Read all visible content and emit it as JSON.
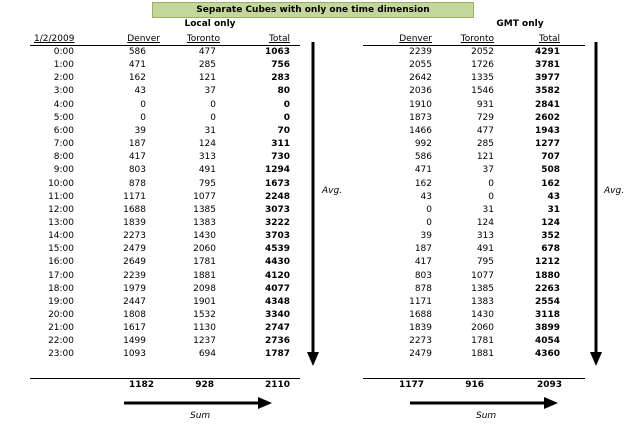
{
  "title": "Separate Cubes with only one time dimension",
  "date_label": "1/2/2009",
  "local": {
    "heading": "Local only",
    "cols": [
      "Denver",
      "Toronto",
      "Total"
    ],
    "rows": [
      [
        "0:00",
        "586",
        "477",
        "1063"
      ],
      [
        "1:00",
        "471",
        "285",
        "756"
      ],
      [
        "2:00",
        "162",
        "121",
        "283"
      ],
      [
        "3:00",
        "43",
        "37",
        "80"
      ],
      [
        "4:00",
        "0",
        "0",
        "0"
      ],
      [
        "5:00",
        "0",
        "0",
        "0"
      ],
      [
        "6:00",
        "39",
        "31",
        "70"
      ],
      [
        "7:00",
        "187",
        "124",
        "311"
      ],
      [
        "8:00",
        "417",
        "313",
        "730"
      ],
      [
        "9:00",
        "803",
        "491",
        "1294"
      ],
      [
        "10:00",
        "878",
        "795",
        "1673"
      ],
      [
        "11:00",
        "1171",
        "1077",
        "2248"
      ],
      [
        "12:00",
        "1688",
        "1385",
        "3073"
      ],
      [
        "13:00",
        "1839",
        "1383",
        "3222"
      ],
      [
        "14:00",
        "2273",
        "1430",
        "3703"
      ],
      [
        "15:00",
        "2479",
        "2060",
        "4539"
      ],
      [
        "16:00",
        "2649",
        "1781",
        "4430"
      ],
      [
        "17:00",
        "2239",
        "1881",
        "4120"
      ],
      [
        "18:00",
        "1979",
        "2098",
        "4077"
      ],
      [
        "19:00",
        "2447",
        "1901",
        "4348"
      ],
      [
        "20:00",
        "1808",
        "1532",
        "3340"
      ],
      [
        "21:00",
        "1617",
        "1130",
        "2747"
      ],
      [
        "22:00",
        "1499",
        "1237",
        "2736"
      ],
      [
        "23:00",
        "1093",
        "694",
        "1787"
      ]
    ],
    "totals": [
      "1182",
      "928",
      "2110"
    ],
    "avg_label": "Avg.",
    "sum_label": "Sum"
  },
  "gmt": {
    "heading": "GMT only",
    "cols": [
      "Denver",
      "Toronto",
      "Total"
    ],
    "rows": [
      [
        "2239",
        "2052",
        "4291"
      ],
      [
        "2055",
        "1726",
        "3781"
      ],
      [
        "2642",
        "1335",
        "3977"
      ],
      [
        "2036",
        "1546",
        "3582"
      ],
      [
        "1910",
        "931",
        "2841"
      ],
      [
        "1873",
        "729",
        "2602"
      ],
      [
        "1466",
        "477",
        "1943"
      ],
      [
        "992",
        "285",
        "1277"
      ],
      [
        "586",
        "121",
        "707"
      ],
      [
        "471",
        "37",
        "508"
      ],
      [
        "162",
        "0",
        "162"
      ],
      [
        "43",
        "0",
        "43"
      ],
      [
        "0",
        "31",
        "31"
      ],
      [
        "0",
        "124",
        "124"
      ],
      [
        "39",
        "313",
        "352"
      ],
      [
        "187",
        "491",
        "678"
      ],
      [
        "417",
        "795",
        "1212"
      ],
      [
        "803",
        "1077",
        "1880"
      ],
      [
        "878",
        "1385",
        "2263"
      ],
      [
        "1171",
        "1383",
        "2554"
      ],
      [
        "1688",
        "1430",
        "3118"
      ],
      [
        "1839",
        "2060",
        "3899"
      ],
      [
        "2273",
        "1781",
        "4054"
      ],
      [
        "2479",
        "1881",
        "4360"
      ]
    ],
    "totals": [
      "1177",
      "916",
      "2093"
    ],
    "avg_label": "Avg.",
    "sum_label": "Sum"
  }
}
